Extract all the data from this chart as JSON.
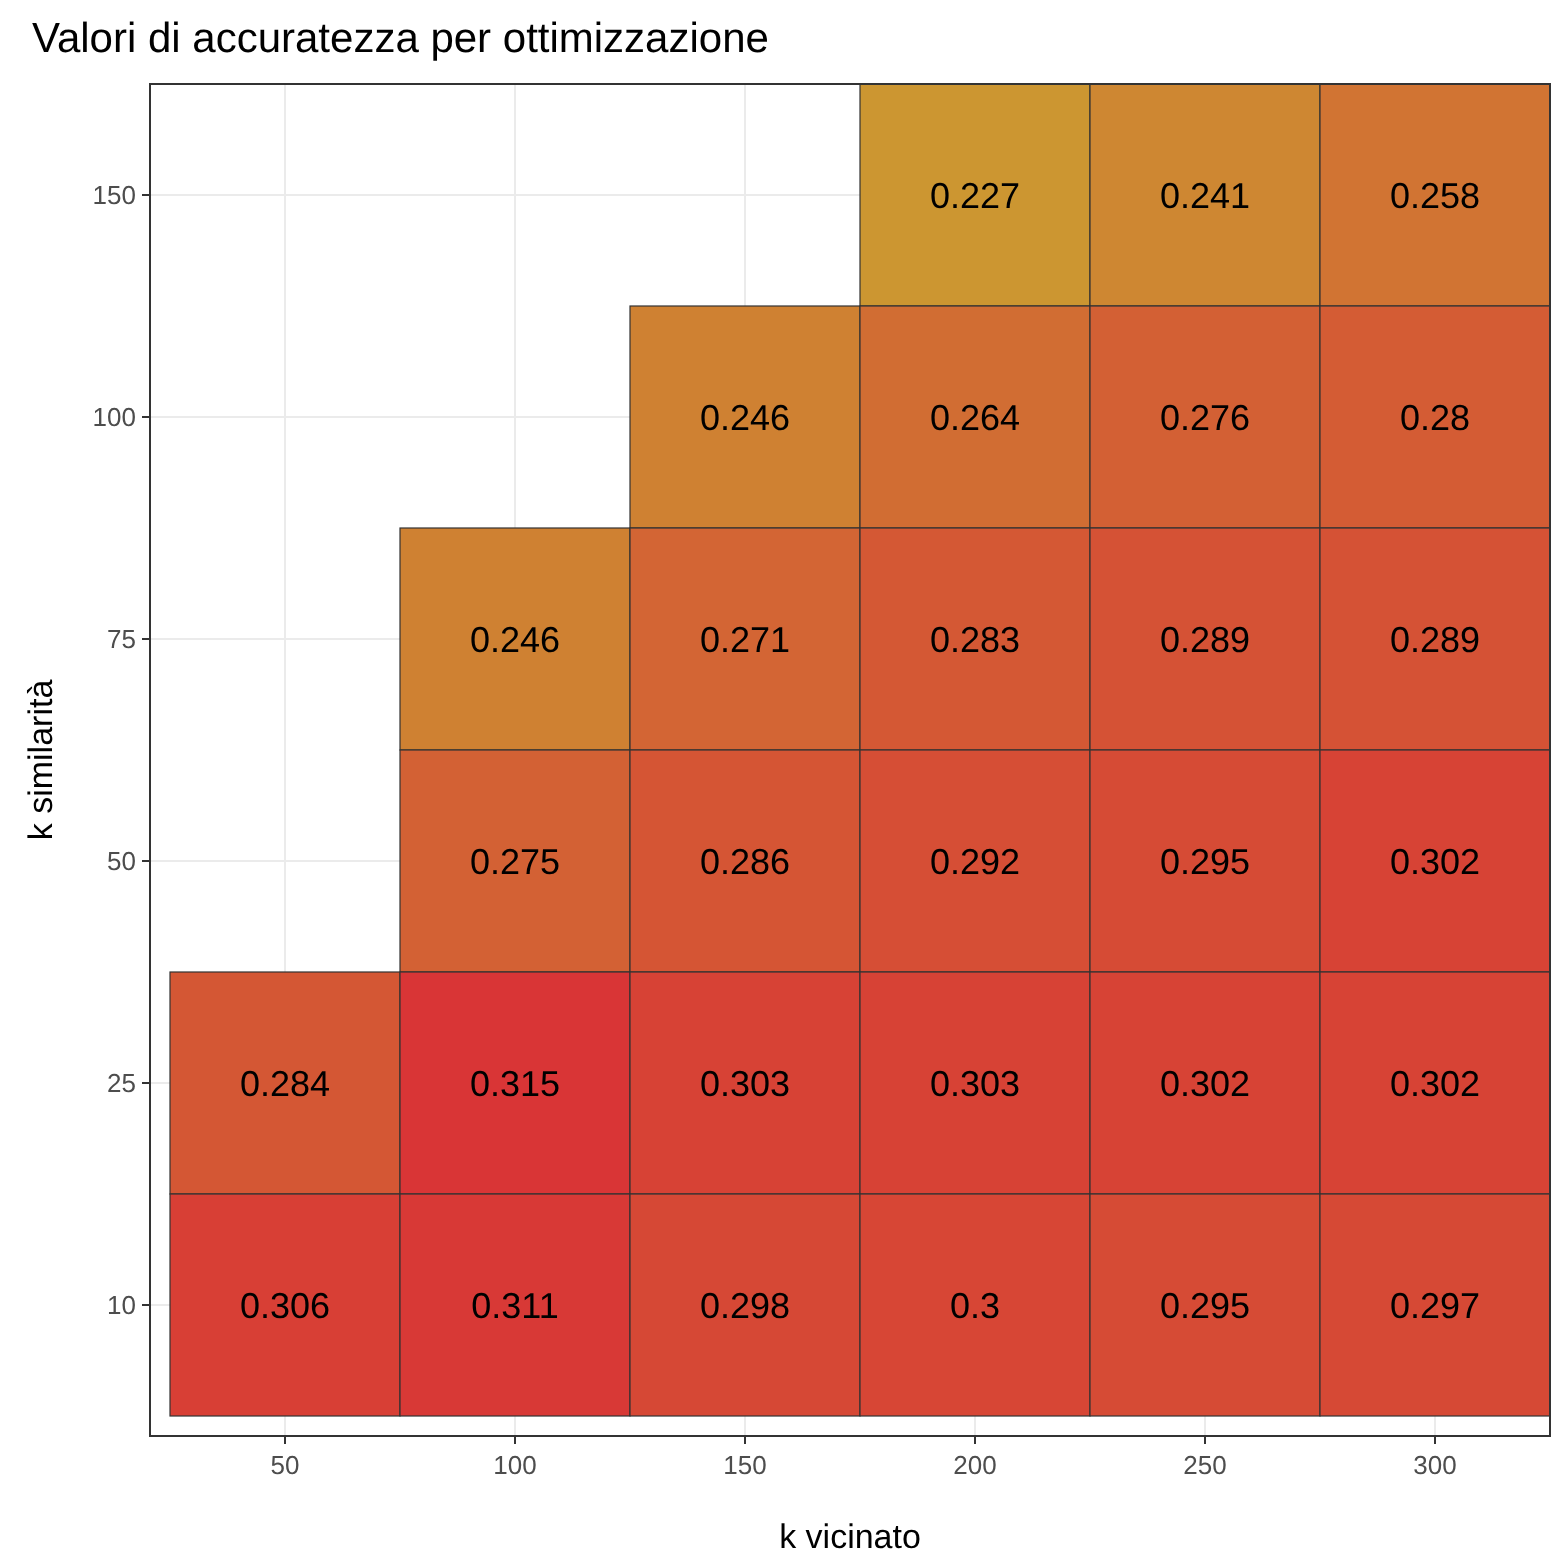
{
  "chart_data": {
    "type": "heatmap",
    "title": "Valori di accuratezza per ottimizzazione",
    "xlabel": "k vicinato",
    "ylabel": "k similarità",
    "categories": [
      "50",
      "100",
      "150",
      "200",
      "250",
      "300"
    ],
    "y_categories": [
      "150",
      "100",
      "75",
      "50",
      "25",
      "10"
    ],
    "cells": [
      [
        null,
        null,
        null,
        0.227,
        0.241,
        0.258
      ],
      [
        null,
        null,
        0.246,
        0.264,
        0.276,
        0.28
      ],
      [
        null,
        0.246,
        0.271,
        0.283,
        0.289,
        0.289
      ],
      [
        null,
        0.275,
        0.286,
        0.292,
        0.295,
        0.302
      ],
      [
        0.284,
        0.315,
        0.303,
        0.303,
        0.302,
        0.302
      ],
      [
        0.306,
        0.311,
        0.298,
        0.3,
        0.295,
        0.297
      ]
    ],
    "colors": [
      "#cc9631",
      "#d93536"
    ],
    "data_labels": true,
    "grid": true
  }
}
